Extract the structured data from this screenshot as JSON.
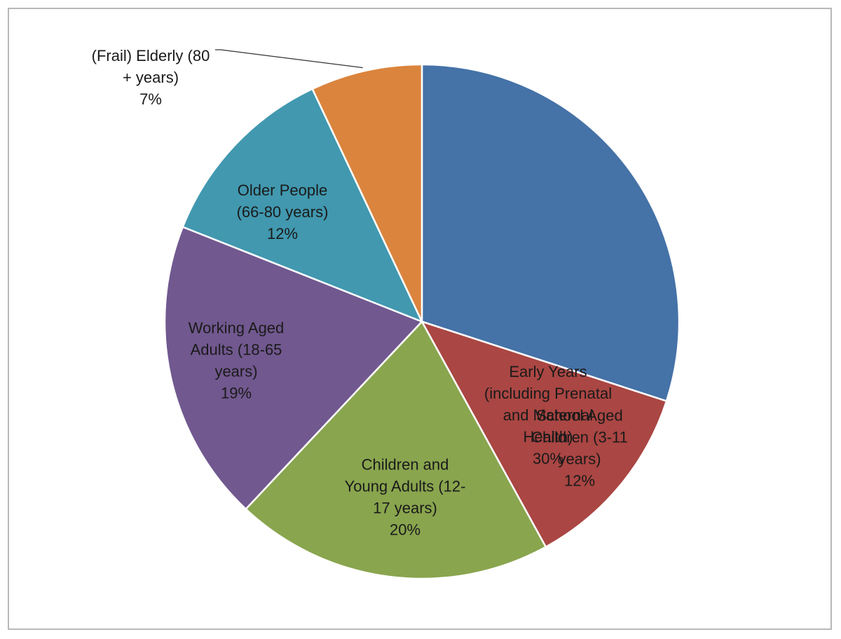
{
  "chart_data": {
    "type": "pie",
    "slices": [
      {
        "name": "Early Years (including Prenatal and Maternal Health)",
        "label_lines": [
          "Early Years",
          "(including Prenatal",
          "and Maternal",
          "Health)"
        ],
        "percent_label": "30%",
        "value": 30,
        "color": "#4572A7"
      },
      {
        "name": "School Aged Children (3-11 years)",
        "label_lines": [
          "School Aged",
          "Children (3-11",
          "years)"
        ],
        "percent_label": "12%",
        "value": 12,
        "color": "#AA4643"
      },
      {
        "name": "Children and Young Adults (12-17 years)",
        "label_lines": [
          "Children and",
          "Young Adults (12-",
          "17 years)"
        ],
        "percent_label": "20%",
        "value": 20,
        "color": "#89A54E"
      },
      {
        "name": "Working Aged Adults (18-65 years)",
        "label_lines": [
          "Working Aged",
          "Adults (18-65",
          "years)"
        ],
        "percent_label": "19%",
        "value": 19,
        "color": "#71588F"
      },
      {
        "name": "Older People (66-80 years)",
        "label_lines": [
          "Older People",
          "(66-80 years)"
        ],
        "percent_label": "12%",
        "value": 12,
        "color": "#4198AF"
      },
      {
        "name": "(Frail) Elderly (80 + years)",
        "label_lines": [
          "(Frail) Elderly (80",
          "+ years)"
        ],
        "percent_label": "7%",
        "value": 7,
        "color": "#DB843D"
      }
    ],
    "start_angle": "12 o'clock",
    "direction": "clockwise",
    "legend": "none",
    "label_position": "inside slices, outside with leader line for smallest slice"
  }
}
